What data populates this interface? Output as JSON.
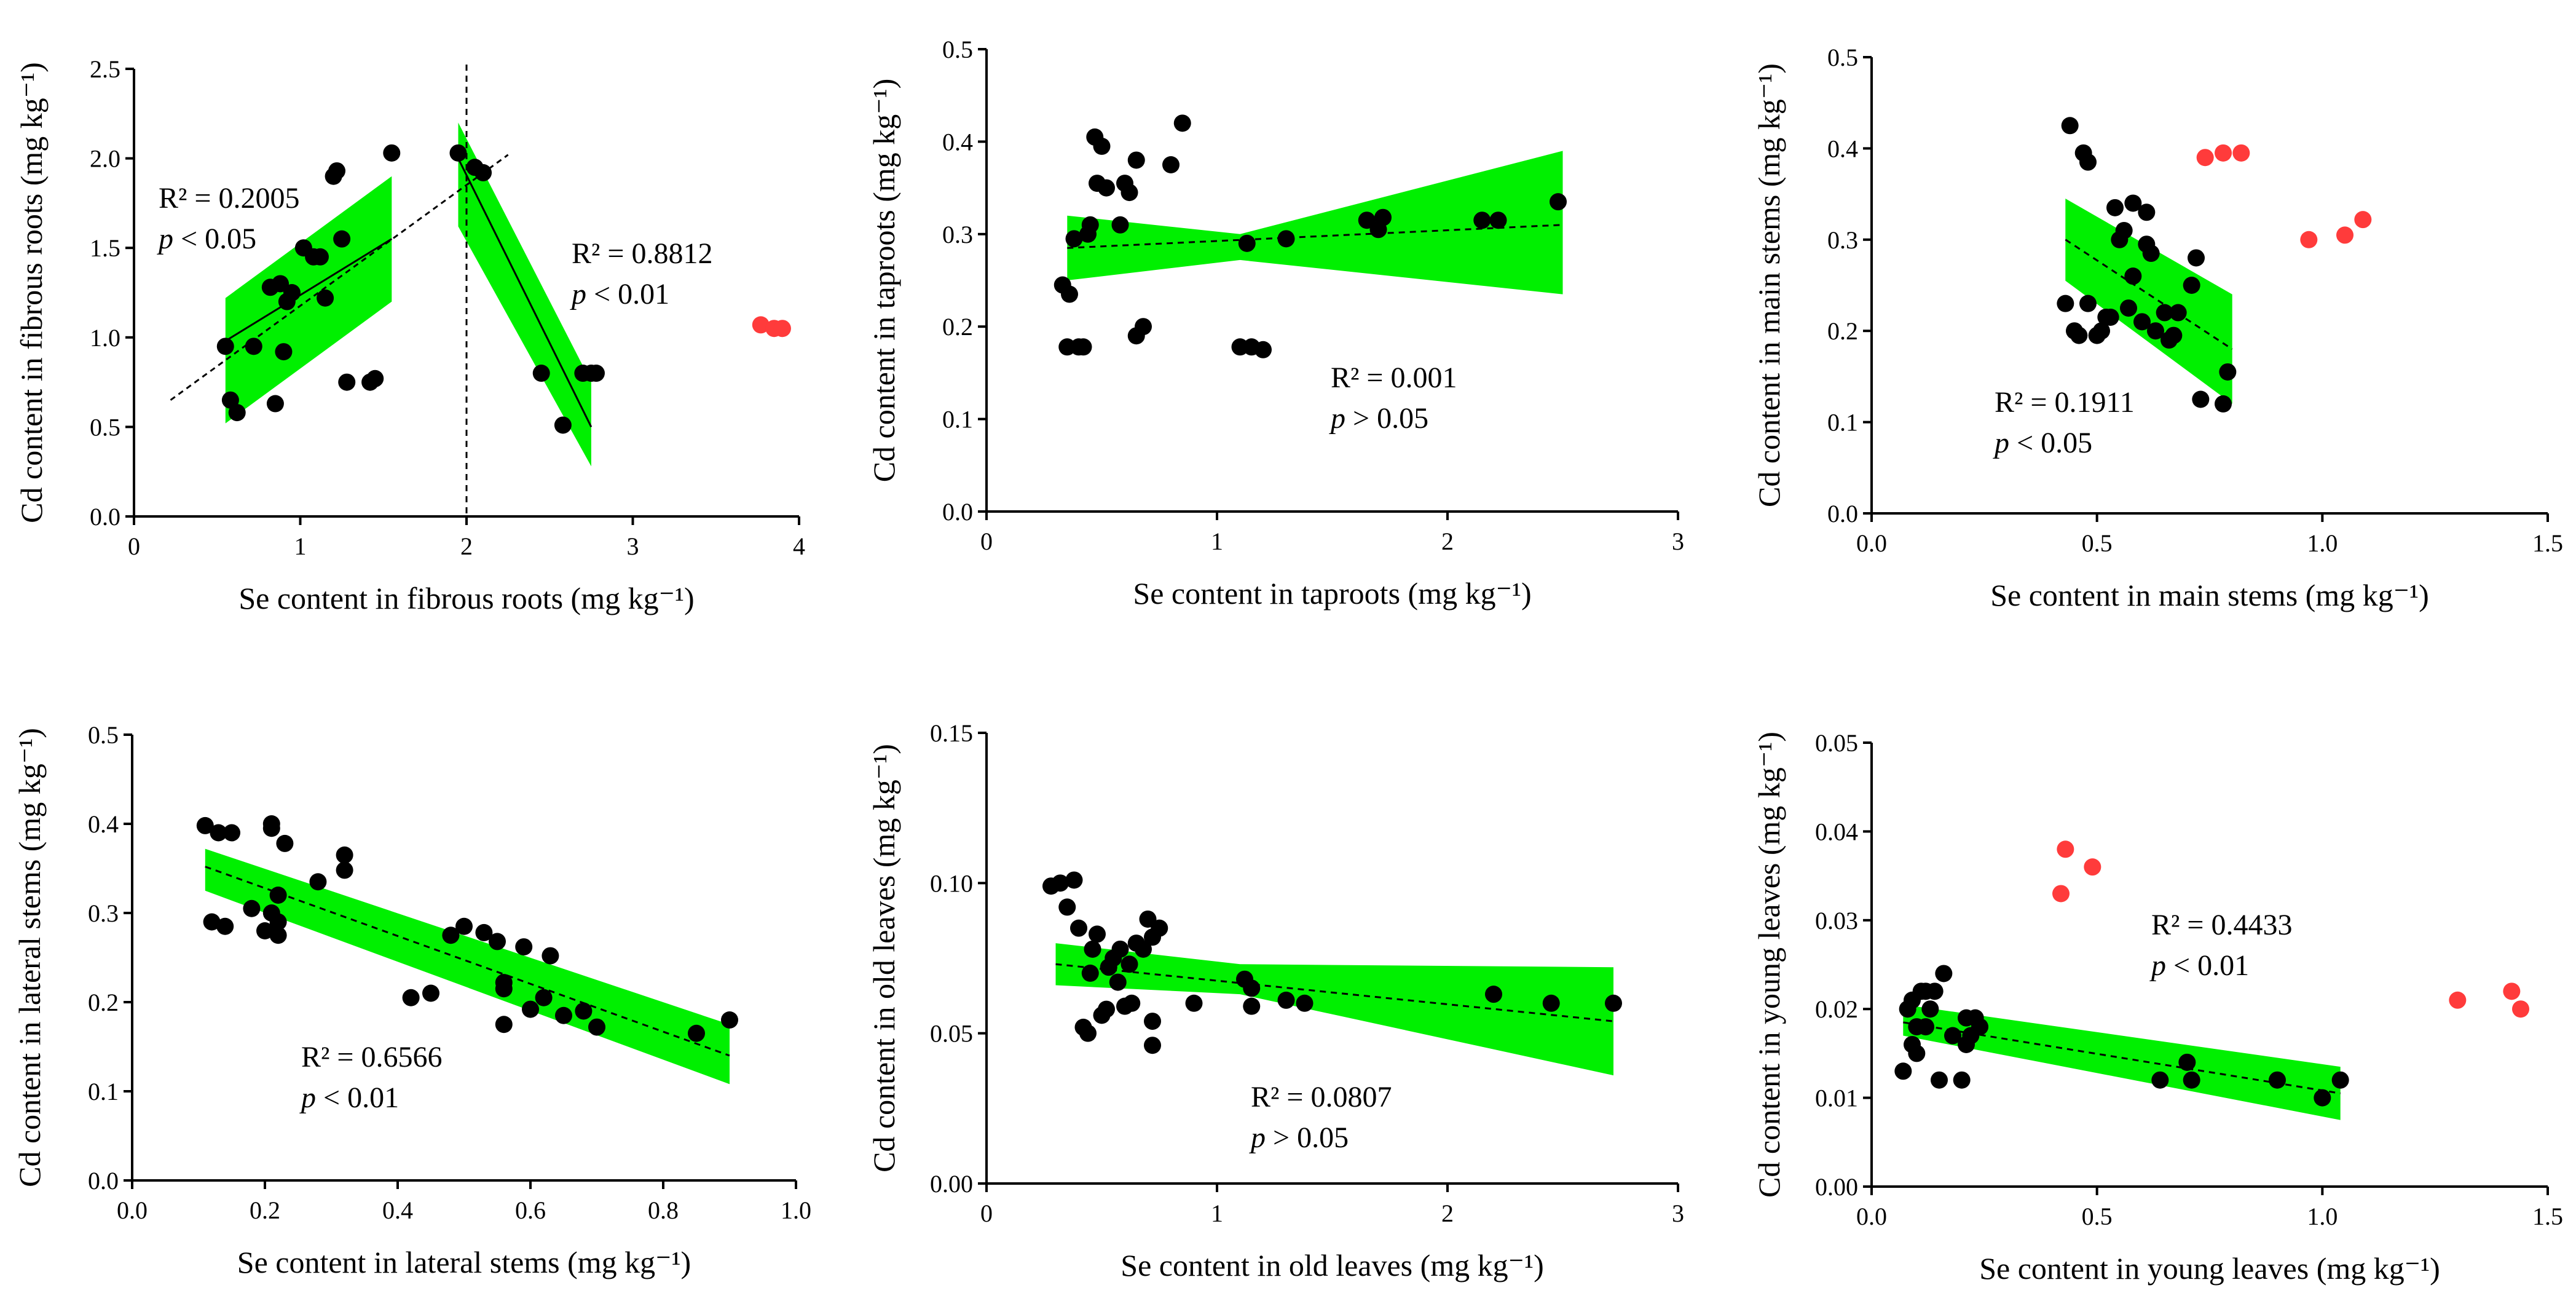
{
  "chart_data": [
    {
      "type": "scatter",
      "xlabel": "Se content in fibrous roots (mg kg⁻¹)",
      "ylabel": "Cd content in fibrous roots (mg kg⁻¹)",
      "xlim": [
        0,
        4
      ],
      "ylim": [
        0,
        2.5
      ],
      "xticks": [
        "0",
        "1",
        "2",
        "3",
        "4"
      ],
      "yticks": [
        "0.0",
        "0.5",
        "1.0",
        "1.5",
        "2.0",
        "2.5"
      ],
      "vline": 2,
      "points": [
        [
          0.55,
          0.95
        ],
        [
          0.58,
          0.65
        ],
        [
          0.62,
          0.58
        ],
        [
          0.72,
          0.95
        ],
        [
          0.82,
          1.28
        ],
        [
          0.85,
          0.63
        ],
        [
          0.88,
          1.3
        ],
        [
          0.9,
          0.92
        ],
        [
          0.92,
          1.2
        ],
        [
          0.95,
          1.25
        ],
        [
          1.02,
          1.5
        ],
        [
          1.08,
          1.45
        ],
        [
          1.12,
          1.45
        ],
        [
          1.15,
          1.22
        ],
        [
          1.2,
          1.9
        ],
        [
          1.22,
          1.93
        ],
        [
          1.25,
          1.55
        ],
        [
          1.28,
          0.75
        ],
        [
          1.42,
          0.75
        ],
        [
          1.45,
          0.77
        ],
        [
          1.55,
          2.03
        ],
        [
          1.95,
          2.03
        ],
        [
          2.05,
          1.95
        ],
        [
          2.1,
          1.92
        ],
        [
          2.45,
          0.8
        ],
        [
          2.58,
          0.51
        ],
        [
          2.7,
          0.8
        ],
        [
          2.75,
          0.8
        ],
        [
          2.78,
          0.8
        ]
      ],
      "outliers": [
        [
          3.77,
          1.07
        ],
        [
          3.85,
          1.05
        ],
        [
          3.9,
          1.05
        ]
      ],
      "series": [
        {
          "name": "fit-left",
          "x_range": [
            0.55,
            1.55
          ],
          "line": [
            [
              0.55,
              0.98
            ],
            [
              1.55,
              1.55
            ]
          ],
          "band_low": [
            [
              0.55,
              0.52
            ],
            [
              1.55,
              1.2
            ]
          ],
          "band_high": [
            [
              0.55,
              1.22
            ],
            [
              1.55,
              1.9
            ]
          ],
          "dashed_ext": [
            [
              0.22,
              0.65
            ],
            [
              2.25,
              2.02
            ]
          ]
        },
        {
          "name": "fit-right",
          "x_range": [
            1.95,
            2.75
          ],
          "line": [
            [
              1.95,
              2.0
            ],
            [
              2.75,
              0.5
            ]
          ],
          "band_low": [
            [
              1.95,
              1.62
            ],
            [
              2.75,
              0.28
            ]
          ],
          "band_high": [
            [
              1.95,
              2.2
            ],
            [
              2.75,
              0.75
            ]
          ]
        }
      ],
      "annotations": [
        {
          "r2": "R² = 0.2005",
          "p_sym": "p",
          "p_rel": "< 0.05"
        },
        {
          "r2": "R² = 0.8812",
          "p_sym": "p",
          "p_rel": "< 0.01"
        }
      ]
    },
    {
      "type": "scatter",
      "xlabel": "Se content in taproots (mg kg⁻¹)",
      "ylabel": "Cd content in taproots (mg kg⁻¹)",
      "xlim": [
        0,
        3
      ],
      "ylim": [
        0,
        0.5
      ],
      "xticks": [
        "0",
        "1",
        "2",
        "3"
      ],
      "yticks": [
        "0.0",
        "0.1",
        "0.2",
        "0.3",
        "0.4",
        "0.5"
      ],
      "points": [
        [
          0.33,
          0.245
        ],
        [
          0.35,
          0.178
        ],
        [
          0.36,
          0.235
        ],
        [
          0.38,
          0.295
        ],
        [
          0.4,
          0.178
        ],
        [
          0.42,
          0.178
        ],
        [
          0.44,
          0.3
        ],
        [
          0.45,
          0.31
        ],
        [
          0.47,
          0.405
        ],
        [
          0.48,
          0.355
        ],
        [
          0.5,
          0.395
        ],
        [
          0.52,
          0.35
        ],
        [
          0.58,
          0.31
        ],
        [
          0.6,
          0.355
        ],
        [
          0.62,
          0.345
        ],
        [
          0.65,
          0.38
        ],
        [
          0.65,
          0.19
        ],
        [
          0.68,
          0.2
        ],
        [
          0.8,
          0.375
        ],
        [
          0.85,
          0.42
        ],
        [
          1.1,
          0.178
        ],
        [
          1.13,
          0.29
        ],
        [
          1.15,
          0.178
        ],
        [
          1.2,
          0.175
        ],
        [
          1.3,
          0.295
        ],
        [
          1.65,
          0.315
        ],
        [
          1.7,
          0.305
        ],
        [
          1.72,
          0.318
        ],
        [
          2.15,
          0.315
        ],
        [
          2.22,
          0.315
        ],
        [
          2.48,
          0.335
        ]
      ],
      "outliers": [],
      "series": [
        {
          "name": "fit",
          "x_range": [
            0.35,
            2.5
          ],
          "line": [
            [
              0.35,
              0.285
            ],
            [
              2.5,
              0.31
            ]
          ],
          "band_low": [
            [
              0.35,
              0.25
            ],
            [
              1.1,
              0.272
            ],
            [
              2.5,
              0.235
            ]
          ],
          "band_high": [
            [
              0.35,
              0.32
            ],
            [
              1.1,
              0.3
            ],
            [
              2.5,
              0.39
            ]
          ]
        }
      ],
      "annotations": [
        {
          "r2": "R² = 0.001",
          "p_sym": "p",
          "p_rel": "> 0.05"
        }
      ]
    },
    {
      "type": "scatter",
      "xlabel": "Se content in main stems (mg kg⁻¹)",
      "ylabel": "Cd content in main stems (mg kg⁻¹)",
      "xlim": [
        0,
        1.5
      ],
      "ylim": [
        0,
        0.5
      ],
      "xticks": [
        "0.0",
        "0.5",
        "1.0",
        "1.5"
      ],
      "yticks": [
        "0.0",
        "0.1",
        "0.2",
        "0.3",
        "0.4",
        "0.5"
      ],
      "points": [
        [
          0.43,
          0.23
        ],
        [
          0.44,
          0.425
        ],
        [
          0.45,
          0.2
        ],
        [
          0.46,
          0.195
        ],
        [
          0.47,
          0.395
        ],
        [
          0.48,
          0.385
        ],
        [
          0.48,
          0.23
        ],
        [
          0.5,
          0.195
        ],
        [
          0.51,
          0.2
        ],
        [
          0.52,
          0.215
        ],
        [
          0.53,
          0.215
        ],
        [
          0.54,
          0.335
        ],
        [
          0.55,
          0.3
        ],
        [
          0.56,
          0.31
        ],
        [
          0.57,
          0.225
        ],
        [
          0.58,
          0.34
        ],
        [
          0.58,
          0.26
        ],
        [
          0.6,
          0.21
        ],
        [
          0.61,
          0.295
        ],
        [
          0.61,
          0.33
        ],
        [
          0.62,
          0.285
        ],
        [
          0.63,
          0.2
        ],
        [
          0.65,
          0.22
        ],
        [
          0.66,
          0.19
        ],
        [
          0.67,
          0.195
        ],
        [
          0.68,
          0.22
        ],
        [
          0.71,
          0.25
        ],
        [
          0.72,
          0.28
        ],
        [
          0.73,
          0.125
        ],
        [
          0.78,
          0.12
        ],
        [
          0.79,
          0.155
        ]
      ],
      "outliers": [
        [
          0.74,
          0.39
        ],
        [
          0.78,
          0.395
        ],
        [
          0.82,
          0.395
        ],
        [
          0.97,
          0.3
        ],
        [
          1.05,
          0.305
        ],
        [
          1.09,
          0.322
        ]
      ],
      "series": [
        {
          "name": "fit",
          "x_range": [
            0.43,
            0.8
          ],
          "line": [
            [
              0.43,
              0.3
            ],
            [
              0.8,
              0.18
            ]
          ],
          "band_low": [
            [
              0.43,
              0.255
            ],
            [
              0.8,
              0.12
            ]
          ],
          "band_high": [
            [
              0.43,
              0.345
            ],
            [
              0.8,
              0.24
            ]
          ]
        }
      ],
      "annotations": [
        {
          "r2": "R² = 0.1911",
          "p_sym": "p",
          "p_rel": "< 0.05"
        }
      ]
    },
    {
      "type": "scatter",
      "xlabel": "Se content in lateral stems (mg kg⁻¹)",
      "ylabel": "Cd content in lateral stems (mg kg⁻¹)",
      "xlim": [
        0,
        1.0
      ],
      "ylim": [
        0,
        0.5
      ],
      "xticks": [
        "0.0",
        "0.2",
        "0.4",
        "0.6",
        "0.8",
        "1.0"
      ],
      "yticks": [
        "0.0",
        "0.1",
        "0.2",
        "0.3",
        "0.4",
        "0.5"
      ],
      "points": [
        [
          0.11,
          0.398
        ],
        [
          0.12,
          0.29
        ],
        [
          0.13,
          0.39
        ],
        [
          0.14,
          0.285
        ],
        [
          0.15,
          0.39
        ],
        [
          0.18,
          0.305
        ],
        [
          0.2,
          0.28
        ],
        [
          0.21,
          0.4
        ],
        [
          0.21,
          0.395
        ],
        [
          0.21,
          0.3
        ],
        [
          0.22,
          0.275
        ],
        [
          0.22,
          0.29
        ],
        [
          0.22,
          0.32
        ],
        [
          0.23,
          0.378
        ],
        [
          0.28,
          0.335
        ],
        [
          0.32,
          0.365
        ],
        [
          0.32,
          0.348
        ],
        [
          0.42,
          0.205
        ],
        [
          0.45,
          0.21
        ],
        [
          0.48,
          0.275
        ],
        [
          0.5,
          0.285
        ],
        [
          0.53,
          0.278
        ],
        [
          0.55,
          0.268
        ],
        [
          0.56,
          0.222
        ],
        [
          0.56,
          0.215
        ],
        [
          0.56,
          0.175
        ],
        [
          0.59,
          0.262
        ],
        [
          0.6,
          0.192
        ],
        [
          0.62,
          0.205
        ],
        [
          0.63,
          0.252
        ],
        [
          0.65,
          0.185
        ],
        [
          0.68,
          0.19
        ],
        [
          0.7,
          0.172
        ],
        [
          0.85,
          0.165
        ],
        [
          0.9,
          0.18
        ]
      ],
      "outliers": [],
      "series": [
        {
          "name": "fit",
          "x_range": [
            0.11,
            0.9
          ],
          "line": [
            [
              0.11,
              0.352
            ],
            [
              0.9,
              0.14
            ]
          ],
          "band_low": [
            [
              0.11,
              0.325
            ],
            [
              0.9,
              0.108
            ]
          ],
          "band_high": [
            [
              0.11,
              0.372
            ],
            [
              0.9,
              0.175
            ]
          ]
        }
      ],
      "annotations": [
        {
          "r2": "R² = 0.6566",
          "p_sym": "p",
          "p_rel": "< 0.01"
        }
      ]
    },
    {
      "type": "scatter",
      "xlabel": "Se content in old leaves (mg kg⁻¹)",
      "ylabel": "Cd content in old leaves (mg kg⁻¹)",
      "xlim": [
        0,
        3
      ],
      "ylim": [
        0,
        0.15
      ],
      "xticks": [
        "0",
        "1",
        "2",
        "3"
      ],
      "yticks": [
        "0.00",
        "0.05",
        "0.10",
        "0.15"
      ],
      "points": [
        [
          0.28,
          0.099
        ],
        [
          0.32,
          0.1
        ],
        [
          0.35,
          0.092
        ],
        [
          0.38,
          0.101
        ],
        [
          0.4,
          0.085
        ],
        [
          0.42,
          0.052
        ],
        [
          0.44,
          0.05
        ],
        [
          0.45,
          0.07
        ],
        [
          0.46,
          0.078
        ],
        [
          0.48,
          0.083
        ],
        [
          0.5,
          0.056
        ],
        [
          0.52,
          0.058
        ],
        [
          0.53,
          0.072
        ],
        [
          0.55,
          0.075
        ],
        [
          0.57,
          0.067
        ],
        [
          0.58,
          0.078
        ],
        [
          0.6,
          0.059
        ],
        [
          0.62,
          0.073
        ],
        [
          0.63,
          0.06
        ],
        [
          0.65,
          0.08
        ],
        [
          0.68,
          0.078
        ],
        [
          0.7,
          0.088
        ],
        [
          0.72,
          0.082
        ],
        [
          0.72,
          0.054
        ],
        [
          0.72,
          0.046
        ],
        [
          0.75,
          0.085
        ],
        [
          0.9,
          0.06
        ],
        [
          1.12,
          0.068
        ],
        [
          1.15,
          0.065
        ],
        [
          1.15,
          0.059
        ],
        [
          1.3,
          0.061
        ],
        [
          1.38,
          0.06
        ],
        [
          2.2,
          0.063
        ],
        [
          2.45,
          0.06
        ],
        [
          2.72,
          0.06
        ]
      ],
      "outliers": [],
      "series": [
        {
          "name": "fit",
          "x_range": [
            0.3,
            2.72
          ],
          "line": [
            [
              0.3,
              0.073
            ],
            [
              2.72,
              0.054
            ]
          ],
          "band_low": [
            [
              0.3,
              0.066
            ],
            [
              1.1,
              0.063
            ],
            [
              2.72,
              0.036
            ]
          ],
          "band_high": [
            [
              0.3,
              0.08
            ],
            [
              1.1,
              0.073
            ],
            [
              2.72,
              0.072
            ]
          ]
        }
      ],
      "annotations": [
        {
          "r2": "R² = 0.0807",
          "p_sym": "p",
          "p_rel": "> 0.05"
        }
      ]
    },
    {
      "type": "scatter",
      "xlabel": "Se content in young leaves (mg kg⁻¹)",
      "ylabel": "Cd content in young leaves (mg kg⁻¹)",
      "xlim": [
        0,
        1.5
      ],
      "ylim": [
        0,
        0.05
      ],
      "xticks": [
        "0.0",
        "0.5",
        "1.0",
        "1.5"
      ],
      "yticks": [
        "0.00",
        "0.01",
        "0.02",
        "0.03",
        "0.04",
        "0.05"
      ],
      "points": [
        [
          0.07,
          0.013
        ],
        [
          0.08,
          0.02
        ],
        [
          0.09,
          0.016
        ],
        [
          0.09,
          0.021
        ],
        [
          0.1,
          0.015
        ],
        [
          0.1,
          0.018
        ],
        [
          0.11,
          0.022
        ],
        [
          0.12,
          0.018
        ],
        [
          0.12,
          0.022
        ],
        [
          0.13,
          0.02
        ],
        [
          0.14,
          0.022
        ],
        [
          0.15,
          0.012
        ],
        [
          0.16,
          0.024
        ],
        [
          0.18,
          0.017
        ],
        [
          0.2,
          0.012
        ],
        [
          0.21,
          0.016
        ],
        [
          0.21,
          0.019
        ],
        [
          0.22,
          0.017
        ],
        [
          0.23,
          0.019
        ],
        [
          0.24,
          0.018
        ],
        [
          0.64,
          0.012
        ],
        [
          0.7,
          0.014
        ],
        [
          0.71,
          0.012
        ],
        [
          0.9,
          0.012
        ],
        [
          1.0,
          0.01
        ],
        [
          1.04,
          0.012
        ]
      ],
      "outliers": [
        [
          0.42,
          0.033
        ],
        [
          0.43,
          0.038
        ],
        [
          0.49,
          0.036
        ],
        [
          1.3,
          0.021
        ],
        [
          1.42,
          0.022
        ],
        [
          1.44,
          0.02
        ]
      ],
      "series": [
        {
          "name": "fit",
          "x_range": [
            0.07,
            1.04
          ],
          "line": [
            [
              0.07,
              0.0185
            ],
            [
              1.04,
              0.0105
            ]
          ],
          "band_low": [
            [
              0.07,
              0.017
            ],
            [
              1.04,
              0.0075
            ]
          ],
          "band_high": [
            [
              0.07,
              0.0205
            ],
            [
              1.04,
              0.0135
            ]
          ]
        }
      ],
      "annotations": [
        {
          "r2": "R² = 0.4433",
          "p_sym": "p",
          "p_rel": "< 0.01"
        }
      ]
    }
  ]
}
